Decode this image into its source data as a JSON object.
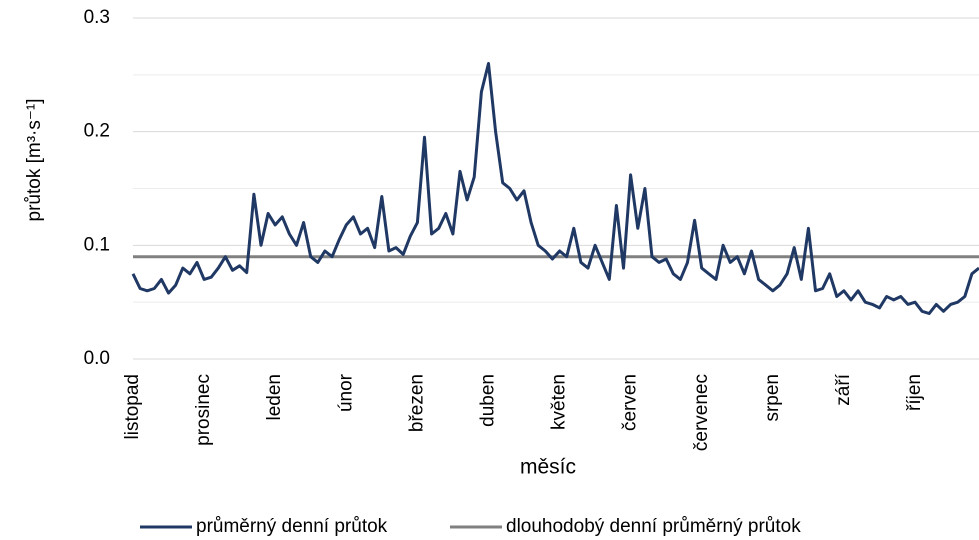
{
  "chart_data": {
    "type": "line",
    "ylabel": "průtok [m³·s⁻¹]",
    "xlabel": "měsíc",
    "categories": [
      "listopad",
      null,
      null,
      null,
      null,
      null,
      null,
      null,
      null,
      null,
      "prosinec",
      null,
      null,
      null,
      null,
      null,
      null,
      null,
      null,
      null,
      "leden",
      null,
      null,
      null,
      null,
      null,
      null,
      null,
      null,
      null,
      "únor",
      null,
      null,
      null,
      null,
      null,
      null,
      null,
      null,
      null,
      "březen",
      null,
      null,
      null,
      null,
      null,
      null,
      null,
      null,
      null,
      "duben",
      null,
      null,
      null,
      null,
      null,
      null,
      null,
      null,
      null,
      "květen",
      null,
      null,
      null,
      null,
      null,
      null,
      null,
      null,
      null,
      "červen",
      null,
      null,
      null,
      null,
      null,
      null,
      null,
      null,
      null,
      "červenec",
      null,
      null,
      null,
      null,
      null,
      null,
      null,
      null,
      null,
      "srpen",
      null,
      null,
      null,
      null,
      null,
      null,
      null,
      null,
      null,
      "září",
      null,
      null,
      null,
      null,
      null,
      null,
      null,
      null,
      null,
      "říjen",
      null,
      null,
      null,
      null,
      null,
      null,
      null,
      null,
      null
    ],
    "series": [
      {
        "name": "průměrný denní průtok",
        "color": "#203864",
        "values": [
          0.075,
          0.062,
          0.06,
          0.062,
          0.07,
          0.058,
          0.065,
          0.08,
          0.075,
          0.085,
          0.07,
          0.072,
          0.08,
          0.09,
          0.078,
          0.082,
          0.076,
          0.145,
          0.1,
          0.128,
          0.118,
          0.125,
          0.11,
          0.1,
          0.12,
          0.09,
          0.085,
          0.095,
          0.09,
          0.105,
          0.118,
          0.125,
          0.11,
          0.115,
          0.098,
          0.143,
          0.095,
          0.098,
          0.092,
          0.108,
          0.12,
          0.195,
          0.11,
          0.115,
          0.128,
          0.11,
          0.165,
          0.14,
          0.16,
          0.235,
          0.26,
          0.2,
          0.155,
          0.15,
          0.14,
          0.148,
          0.12,
          0.1,
          0.095,
          0.088,
          0.095,
          0.09,
          0.115,
          0.085,
          0.08,
          0.1,
          0.085,
          0.07,
          0.135,
          0.08,
          0.162,
          0.115,
          0.15,
          0.09,
          0.085,
          0.088,
          0.075,
          0.07,
          0.085,
          0.122,
          0.08,
          0.075,
          0.07,
          0.1,
          0.085,
          0.09,
          0.075,
          0.095,
          0.07,
          0.065,
          0.06,
          0.065,
          0.075,
          0.098,
          0.07,
          0.115,
          0.06,
          0.062,
          0.075,
          0.055,
          0.06,
          0.052,
          0.06,
          0.05,
          0.048,
          0.045,
          0.055,
          0.052,
          0.055,
          0.048,
          0.05,
          0.042,
          0.04,
          0.048,
          0.042,
          0.048,
          0.05,
          0.055,
          0.075,
          0.08
        ]
      }
    ],
    "reference_line": {
      "name": "dlouhodobý denní průměrný průtok",
      "color": "#808080",
      "value": 0.09
    },
    "ylim": [
      0,
      0.3
    ],
    "yticks": [
      {
        "value": 0,
        "label": "0.0"
      },
      0.1,
      0.2,
      0.3
    ],
    "y_minor_ticks": [
      0.05,
      0.15,
      0.25
    ],
    "grid": true,
    "legend": "bottom"
  }
}
